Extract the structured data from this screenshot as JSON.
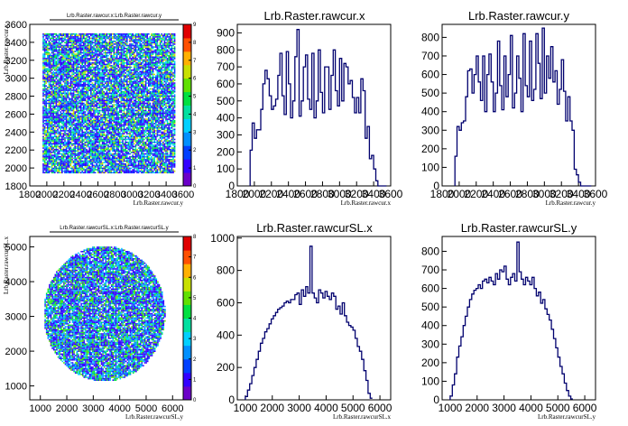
{
  "chart_data": [
    {
      "type": "heatmap",
      "title": "Lrb.Raster.rawcur.x:Lrb.Raster.rawcur.y",
      "xlabel": "Lrb.Raster.rawcur.y",
      "ylabel": "Lrb.Raster.rawcur.x",
      "xlim": [
        1800,
        3600
      ],
      "ylim": [
        1800,
        3600
      ],
      "xticks": [
        "1800",
        "2000",
        "2200",
        "2400",
        "2600",
        "2800",
        "3000",
        "3200",
        "3400",
        "3600"
      ],
      "yticks": [
        "1800",
        "2000",
        "2200",
        "2400",
        "2600",
        "2800",
        "3000",
        "3200",
        "3400",
        "3600"
      ],
      "shape": "square",
      "x_range": [
        1950,
        3500
      ],
      "y_range": [
        1950,
        3500
      ],
      "z_ticks": [
        "0",
        "1",
        "2",
        "3",
        "4",
        "5",
        "6",
        "7",
        "8",
        "9"
      ],
      "z_max": 9
    },
    {
      "type": "bar",
      "title": "Lrb.Raster.rawcur.x",
      "xlabel": "Lrb.Raster.rawcur.x",
      "xlim": [
        1800,
        3600
      ],
      "ylim": [
        0,
        950
      ],
      "xticks": [
        "1800",
        "2000",
        "2200",
        "2400",
        "2600",
        "2800",
        "3000",
        "3200",
        "3400",
        "3600"
      ],
      "yticks": [
        "0",
        "100",
        "200",
        "300",
        "400",
        "500",
        "600",
        "700",
        "800",
        "900"
      ],
      "bin_start": 1950,
      "bin_width": 25,
      "values": [
        210,
        370,
        280,
        330,
        330,
        450,
        600,
        680,
        630,
        530,
        450,
        470,
        510,
        650,
        780,
        530,
        420,
        790,
        600,
        400,
        500,
        760,
        920,
        410,
        500,
        700,
        770,
        510,
        450,
        780,
        400,
        500,
        800,
        550,
        430,
        700,
        700,
        450,
        650,
        800,
        560,
        470,
        750,
        500,
        720,
        700,
        600,
        620,
        520,
        430,
        520,
        430,
        630,
        560,
        280,
        350,
        160,
        180,
        100,
        30,
        0,
        0,
        0,
        0
      ]
    },
    {
      "type": "bar",
      "title": "Lrb.Raster.rawcur.y",
      "xlabel": "Lrb.Raster.rawcur.y",
      "xlim": [
        1800,
        3600
      ],
      "ylim": [
        0,
        870
      ],
      "xticks": [
        "1800",
        "2000",
        "2200",
        "2400",
        "2600",
        "2800",
        "3000",
        "3200",
        "3400",
        "3600"
      ],
      "yticks": [
        "0",
        "100",
        "200",
        "300",
        "400",
        "500",
        "600",
        "700",
        "800"
      ],
      "bin_start": 1950,
      "bin_width": 25,
      "values": [
        160,
        320,
        300,
        340,
        350,
        480,
        620,
        630,
        500,
        600,
        700,
        560,
        460,
        700,
        400,
        600,
        710,
        560,
        400,
        500,
        780,
        540,
        410,
        700,
        480,
        600,
        810,
        420,
        500,
        700,
        580,
        400,
        820,
        540,
        480,
        780,
        460,
        520,
        820,
        660,
        470,
        850,
        500,
        700,
        580,
        750,
        560,
        620,
        440,
        520,
        680,
        510,
        350,
        480,
        350,
        300,
        90,
        60,
        20,
        0,
        0,
        0,
        0,
        0
      ]
    },
    {
      "type": "heatmap",
      "title": "Lrb.Raster.rawcurSL.x:Lrb.Raster.rawcurSL.y",
      "xlabel": "Lrb.Raster.rawcurSL.y",
      "ylabel": "Lrb.Raster.rawcurSL.x",
      "xlim": [
        600,
        6400
      ],
      "ylim": [
        600,
        5300
      ],
      "xticks": [
        "1000",
        "2000",
        "3000",
        "4000",
        "5000",
        "6000"
      ],
      "yticks": [
        "1000",
        "2000",
        "3000",
        "4000",
        "5000"
      ],
      "shape": "circle",
      "center": [
        3400,
        3100
      ],
      "radius": [
        2300,
        1950
      ],
      "z_ticks": [
        "0",
        "1",
        "2",
        "3",
        "4",
        "5",
        "6",
        "7",
        "8"
      ],
      "z_max": 8
    },
    {
      "type": "bar",
      "title": "Lrb.Raster.rawcurSL.x",
      "xlabel": "Lrb.Raster.rawcurSL.x",
      "xlim": [
        700,
        6400
      ],
      "ylim": [
        0,
        1010
      ],
      "xticks": [
        "1000",
        "2000",
        "3000",
        "4000",
        "5000",
        "6000"
      ],
      "yticks": [
        "0",
        "200",
        "400",
        "600",
        "800",
        "1000"
      ],
      "bin_start": 1000,
      "bin_width": 80,
      "values": [
        20,
        60,
        100,
        150,
        200,
        250,
        300,
        350,
        380,
        420,
        440,
        470,
        500,
        520,
        540,
        560,
        570,
        580,
        600,
        610,
        600,
        620,
        620,
        650,
        660,
        590,
        680,
        640,
        700,
        660,
        950,
        660,
        630,
        600,
        680,
        660,
        630,
        670,
        640,
        620,
        660,
        640,
        560,
        580,
        530,
        600,
        520,
        480,
        460,
        450,
        430,
        380,
        330,
        300,
        250,
        180,
        120,
        40,
        10
      ]
    },
    {
      "type": "bar",
      "title": "Lrb.Raster.rawcurSL.y",
      "xlabel": "Lrb.Raster.rawcurSL.y",
      "xlim": [
        700,
        6400
      ],
      "ylim": [
        0,
        880
      ],
      "xticks": [
        "1000",
        "2000",
        "3000",
        "4000",
        "5000",
        "6000"
      ],
      "yticks": [
        "0",
        "100",
        "200",
        "300",
        "400",
        "500",
        "600",
        "700",
        "800"
      ],
      "bin_start": 1000,
      "bin_width": 80,
      "values": [
        20,
        80,
        140,
        230,
        290,
        340,
        400,
        450,
        500,
        540,
        570,
        590,
        600,
        620,
        600,
        640,
        650,
        630,
        660,
        640,
        620,
        680,
        650,
        700,
        690,
        720,
        650,
        620,
        660,
        680,
        640,
        850,
        690,
        650,
        620,
        660,
        640,
        620,
        660,
        600,
        560,
        580,
        520,
        540,
        490,
        460,
        430,
        380,
        330,
        280,
        230,
        180,
        140,
        90,
        50,
        20,
        5
      ]
    }
  ]
}
